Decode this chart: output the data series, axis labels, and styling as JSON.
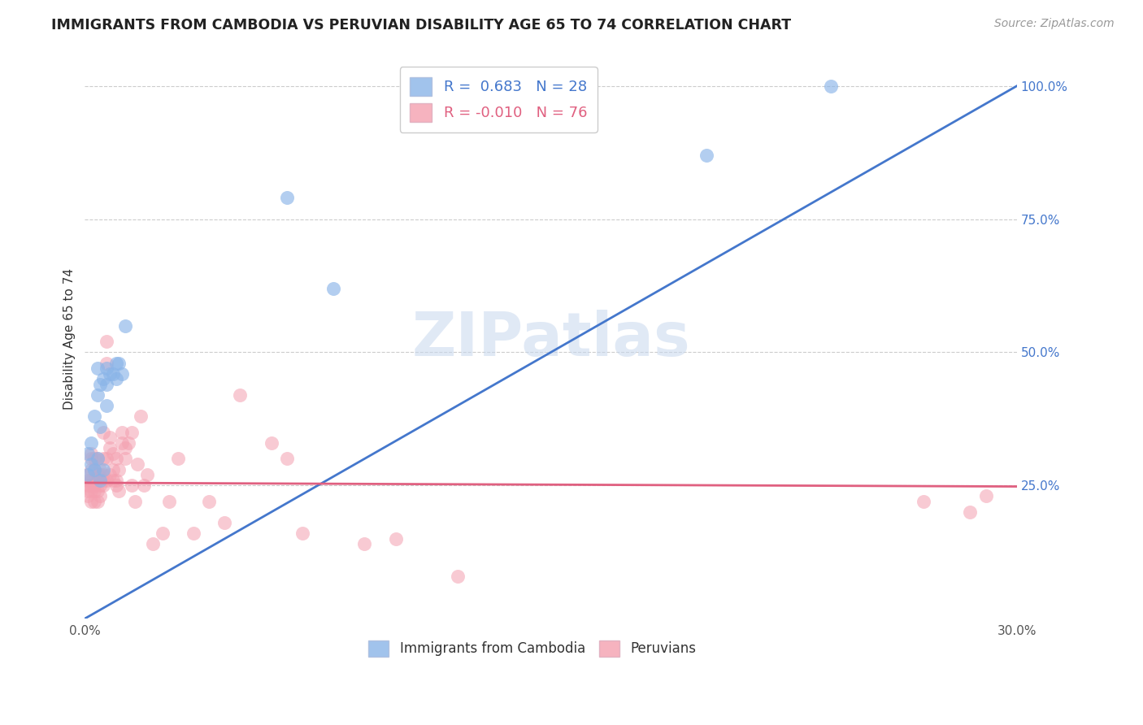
{
  "title": "IMMIGRANTS FROM CAMBODIA VS PERUVIAN DISABILITY AGE 65 TO 74 CORRELATION CHART",
  "source": "Source: ZipAtlas.com",
  "ylabel": "Disability Age 65 to 74",
  "ylabel_right_ticks": [
    "25.0%",
    "50.0%",
    "75.0%",
    "100.0%"
  ],
  "ylabel_right_vals": [
    0.25,
    0.5,
    0.75,
    1.0
  ],
  "xlim": [
    0.0,
    0.3
  ],
  "ylim": [
    0.0,
    1.05
  ],
  "watermark": "ZIPatlas",
  "blue_color": "#8ab4e8",
  "pink_color": "#f4a0b0",
  "blue_line_color": "#4477cc",
  "pink_line_color": "#e06080",
  "blue_line": [
    0.0,
    0.0,
    0.3,
    1.0
  ],
  "pink_line": [
    0.0,
    0.255,
    0.3,
    0.248
  ],
  "cambodia_x": [
    0.001,
    0.001,
    0.002,
    0.002,
    0.003,
    0.003,
    0.004,
    0.004,
    0.004,
    0.005,
    0.005,
    0.005,
    0.006,
    0.006,
    0.007,
    0.007,
    0.007,
    0.008,
    0.009,
    0.01,
    0.01,
    0.011,
    0.012,
    0.013,
    0.065,
    0.08,
    0.2,
    0.24
  ],
  "cambodia_y": [
    0.27,
    0.31,
    0.29,
    0.33,
    0.28,
    0.38,
    0.3,
    0.42,
    0.47,
    0.26,
    0.36,
    0.44,
    0.28,
    0.45,
    0.4,
    0.44,
    0.47,
    0.46,
    0.46,
    0.45,
    0.48,
    0.48,
    0.46,
    0.55,
    0.79,
    0.62,
    0.87,
    1.0
  ],
  "peru_x": [
    0.001,
    0.001,
    0.001,
    0.001,
    0.001,
    0.002,
    0.002,
    0.002,
    0.002,
    0.002,
    0.002,
    0.002,
    0.003,
    0.003,
    0.003,
    0.003,
    0.003,
    0.003,
    0.003,
    0.004,
    0.004,
    0.004,
    0.004,
    0.004,
    0.005,
    0.005,
    0.005,
    0.005,
    0.006,
    0.006,
    0.006,
    0.006,
    0.006,
    0.007,
    0.007,
    0.007,
    0.007,
    0.008,
    0.008,
    0.008,
    0.009,
    0.009,
    0.009,
    0.01,
    0.01,
    0.01,
    0.011,
    0.011,
    0.012,
    0.012,
    0.013,
    0.013,
    0.014,
    0.015,
    0.015,
    0.016,
    0.017,
    0.018,
    0.019,
    0.02,
    0.022,
    0.025,
    0.027,
    0.03,
    0.035,
    0.04,
    0.045,
    0.05,
    0.06,
    0.065,
    0.07,
    0.09,
    0.1,
    0.12,
    0.27,
    0.285,
    0.29
  ],
  "peru_y": [
    0.26,
    0.25,
    0.24,
    0.27,
    0.23,
    0.26,
    0.24,
    0.28,
    0.25,
    0.22,
    0.3,
    0.31,
    0.25,
    0.26,
    0.24,
    0.28,
    0.25,
    0.22,
    0.3,
    0.26,
    0.24,
    0.27,
    0.22,
    0.3,
    0.25,
    0.27,
    0.23,
    0.28,
    0.26,
    0.35,
    0.25,
    0.27,
    0.3,
    0.26,
    0.52,
    0.48,
    0.3,
    0.32,
    0.34,
    0.27,
    0.26,
    0.31,
    0.28,
    0.26,
    0.3,
    0.25,
    0.28,
    0.24,
    0.33,
    0.35,
    0.32,
    0.3,
    0.33,
    0.35,
    0.25,
    0.22,
    0.29,
    0.38,
    0.25,
    0.27,
    0.14,
    0.16,
    0.22,
    0.3,
    0.16,
    0.22,
    0.18,
    0.42,
    0.33,
    0.3,
    0.16,
    0.14,
    0.15,
    0.08,
    0.22,
    0.2,
    0.23
  ]
}
